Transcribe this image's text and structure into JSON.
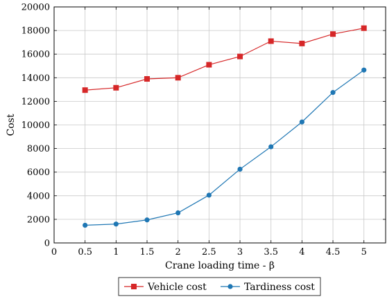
{
  "chart_data": {
    "type": "line",
    "title": "",
    "xlabel": "Crane loading time - β",
    "ylabel": "Cost",
    "xlim": [
      0,
      5.35
    ],
    "ylim": [
      0,
      20000
    ],
    "grid": true,
    "legend_position": "bottom-center",
    "x_ticks": [
      0,
      0.5,
      1,
      1.5,
      2,
      2.5,
      3,
      3.5,
      4,
      4.5,
      5
    ],
    "x_tick_labels": [
      "0",
      "0.5",
      "1",
      "1.5",
      "2",
      "2.5",
      "3",
      "3.5",
      "4",
      "4.5",
      "5"
    ],
    "y_ticks": [
      0,
      2000,
      4000,
      6000,
      8000,
      10000,
      12000,
      14000,
      16000,
      18000,
      20000
    ],
    "y_tick_labels": [
      "0",
      "2000",
      "4000",
      "6000",
      "8000",
      "10000",
      "12000",
      "14000",
      "16000",
      "18000",
      "20000"
    ],
    "x": [
      0.5,
      1,
      1.5,
      2,
      2.5,
      3,
      3.5,
      4,
      4.5,
      5
    ],
    "series": [
      {
        "name": "Vehicle cost",
        "color": "#d62728",
        "marker": "square",
        "values": [
          12950,
          13150,
          13900,
          14000,
          15100,
          15800,
          17100,
          16900,
          17700,
          18200
        ]
      },
      {
        "name": "Tardiness cost",
        "color": "#1f77b4",
        "marker": "circle",
        "values": [
          1500,
          1600,
          1950,
          2550,
          4050,
          6250,
          8150,
          10250,
          12750,
          14650
        ]
      }
    ]
  }
}
